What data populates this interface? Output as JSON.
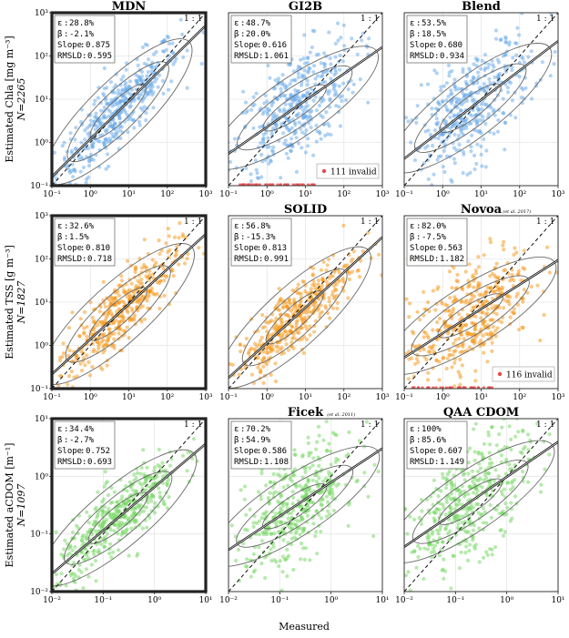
{
  "figure": {
    "xlabel": "Measured",
    "one_to_one_label": "1 : 1",
    "stat_labels": {
      "eps": "ε",
      "beta": "β",
      "slope": "Slope",
      "rmsld": "RMSLD"
    }
  },
  "colors": {
    "chla": "#63a7ea",
    "tss": "#f5940f",
    "cdom": "#6fd65b",
    "invalid": "#e84a4a",
    "fit": "#111111",
    "contour": "#6a6a6a"
  },
  "rows": [
    {
      "ylabel": "Estimated Chla [mg m⁻³]",
      "n_label": "N=2265"
    },
    {
      "ylabel": "Estimated TSS [g m⁻³]",
      "n_label": "N=1827"
    },
    {
      "ylabel": "Estimated aCDOM [m⁻¹]",
      "n_label": "N=1097"
    }
  ],
  "chart_data": [
    {
      "type": "scatter",
      "title": "MDN",
      "citation": "",
      "series_color": "chla",
      "highlight": true,
      "log": true,
      "xlim": [
        0.1,
        1000
      ],
      "ylim": [
        0.1,
        1000
      ],
      "xticks": [
        "10⁻¹",
        "10⁰",
        "10¹",
        "10²",
        "10³"
      ],
      "yticks": [
        "10⁻¹",
        "10⁰",
        "10¹",
        "10²",
        "10³"
      ],
      "stats": {
        "eps": "28.8%",
        "beta": "-2.1%",
        "slope": "0.875",
        "rmsld": "0.595"
      },
      "fit": {
        "slope": 0.875,
        "beta": -0.021
      },
      "invalid_label": "",
      "invalid_count": 0
    },
    {
      "type": "scatter",
      "title": "GI2B",
      "citation": "",
      "series_color": "chla",
      "highlight": false,
      "log": true,
      "xlim": [
        0.1,
        1000
      ],
      "ylim": [
        0.1,
        1000
      ],
      "xticks": [
        "10⁻¹",
        "10⁰",
        "10¹",
        "10²",
        "10³"
      ],
      "yticks": [],
      "stats": {
        "eps": "48.7%",
        "beta": "20.0%",
        "slope": "0.616",
        "rmsld": "1.061"
      },
      "fit": {
        "slope": 0.616,
        "beta": 0.2
      },
      "invalid_label": "111 invalid",
      "invalid_count": 111
    },
    {
      "type": "scatter",
      "title": "Blend",
      "citation": "",
      "series_color": "chla",
      "highlight": false,
      "log": true,
      "xlim": [
        0.1,
        1000
      ],
      "ylim": [
        0.1,
        1000
      ],
      "xticks": [
        "10⁻¹",
        "10⁰",
        "10¹",
        "10²",
        "10³"
      ],
      "yticks": [],
      "stats": {
        "eps": "53.5%",
        "beta": "18.5%",
        "slope": "0.680",
        "rmsld": "0.934"
      },
      "fit": {
        "slope": 0.68,
        "beta": 0.185
      },
      "invalid_label": "",
      "invalid_count": 0
    },
    {
      "type": "scatter",
      "title": "",
      "citation": "",
      "series_color": "tss",
      "highlight": true,
      "log": true,
      "xlim": [
        0.1,
        1000
      ],
      "ylim": [
        0.1,
        1000
      ],
      "xticks": [
        "10⁻¹",
        "10⁰",
        "10¹",
        "10²",
        "10³"
      ],
      "yticks": [
        "10⁻¹",
        "10⁰",
        "10¹",
        "10²",
        "10³"
      ],
      "stats": {
        "eps": "32.6%",
        "beta": "1.5%",
        "slope": "0.810",
        "rmsld": "0.718"
      },
      "fit": {
        "slope": 0.81,
        "beta": 0.015
      },
      "invalid_label": "",
      "invalid_count": 0
    },
    {
      "type": "scatter",
      "title": "SOLID",
      "citation": "",
      "series_color": "tss",
      "highlight": false,
      "log": true,
      "xlim": [
        0.1,
        1000
      ],
      "ylim": [
        0.1,
        1000
      ],
      "xticks": [
        "10⁻¹",
        "10⁰",
        "10¹",
        "10²",
        "10³"
      ],
      "yticks": [],
      "stats": {
        "eps": "56.8%",
        "beta": "-15.3%",
        "slope": "0.813",
        "rmsld": "0.991"
      },
      "fit": {
        "slope": 0.813,
        "beta": -0.153
      },
      "invalid_label": "",
      "invalid_count": 0
    },
    {
      "type": "scatter",
      "title": "Novoa",
      "citation": "(et al. 2017)",
      "series_color": "tss",
      "highlight": false,
      "log": true,
      "xlim": [
        0.1,
        1000
      ],
      "ylim": [
        0.1,
        1000
      ],
      "xticks": [
        "10⁻¹",
        "10⁰",
        "10¹",
        "10²",
        "10³"
      ],
      "yticks": [],
      "stats": {
        "eps": "82.0%",
        "beta": "-7.5%",
        "slope": "0.563",
        "rmsld": "1.182"
      },
      "fit": {
        "slope": 0.563,
        "beta": -0.075
      },
      "invalid_label": "116 invalid",
      "invalid_count": 116
    },
    {
      "type": "scatter",
      "title": "",
      "citation": "",
      "series_color": "cdom",
      "highlight": true,
      "log": true,
      "xlim": [
        0.01,
        10
      ],
      "ylim": [
        0.01,
        10
      ],
      "xticks": [
        "10⁻²",
        "10⁻¹",
        "10⁰",
        "10¹"
      ],
      "yticks": [
        "10⁻²",
        "10⁻¹",
        "10⁰",
        "10¹"
      ],
      "stats": {
        "eps": "34.4%",
        "beta": "-2.7%",
        "slope": "0.752",
        "rmsld": "0.693"
      },
      "fit": {
        "slope": 0.752,
        "beta": -0.027
      },
      "invalid_label": "",
      "invalid_count": 0
    },
    {
      "type": "scatter",
      "title": "Ficek",
      "citation": "(et al. 2011)",
      "series_color": "cdom",
      "highlight": false,
      "log": true,
      "xlim": [
        0.01,
        10
      ],
      "ylim": [
        0.01,
        10
      ],
      "xticks": [
        "10⁻²",
        "10⁻¹",
        "10⁰",
        "10¹"
      ],
      "yticks": [],
      "stats": {
        "eps": "70.2%",
        "beta": "54.9%",
        "slope": "0.586",
        "rmsld": "1.108"
      },
      "fit": {
        "slope": 0.586,
        "beta": 0.549
      },
      "invalid_label": "",
      "invalid_count": 0
    },
    {
      "type": "scatter",
      "title": "QAA CDOM",
      "citation": "",
      "series_color": "cdom",
      "highlight": false,
      "log": true,
      "xlim": [
        0.01,
        10
      ],
      "ylim": [
        0.01,
        10
      ],
      "xticks": [
        "10⁻²",
        "10⁻¹",
        "10⁰",
        "10¹"
      ],
      "yticks": [],
      "stats": {
        "eps": "100%",
        "beta": "85.6%",
        "slope": "0.607",
        "rmsld": "1.149"
      },
      "fit": {
        "slope": 0.607,
        "beta": 0.856
      },
      "invalid_label": "",
      "invalid_count": 0
    }
  ]
}
